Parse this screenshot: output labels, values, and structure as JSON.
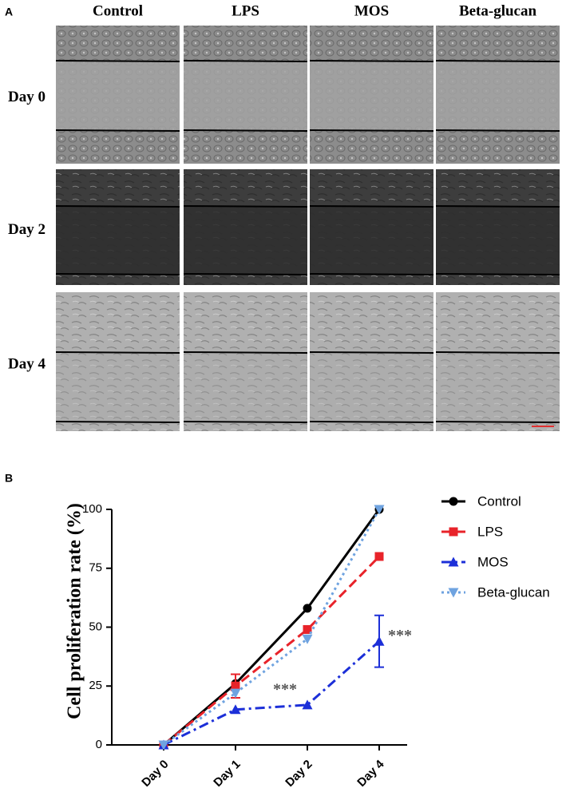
{
  "panel_a": {
    "label": "A",
    "columns": [
      "Control",
      "LPS",
      "MOS",
      "Beta-glucan"
    ],
    "rows": [
      "Day 0",
      "Day 2",
      "Day 4"
    ]
  },
  "chart_data": {
    "panel_label": "B",
    "type": "line",
    "y_label": "Cell proliferation rate (%)",
    "categories": [
      "Day 0",
      "Day 1",
      "Day 2",
      "Day 4"
    ],
    "series": [
      {
        "name": "Control",
        "color": "#000000",
        "line_style": "solid",
        "marker": "circle",
        "values": [
          0,
          26,
          58,
          100
        ]
      },
      {
        "name": "LPS",
        "color": "#e8232a",
        "line_style": "dashed",
        "marker": "square",
        "values": [
          0,
          25,
          49,
          80
        ],
        "errors": [
          null,
          5,
          null,
          null
        ]
      },
      {
        "name": "MOS",
        "color": "#1c2fd8",
        "line_style": "dashdot",
        "marker": "triangle-up",
        "values": [
          0,
          15,
          17,
          44
        ],
        "errors": [
          null,
          null,
          null,
          11
        ]
      },
      {
        "name": "Beta-glucan",
        "color": "#6fa3e0",
        "line_style": "dotted",
        "marker": "triangle-down",
        "values": [
          0,
          22,
          45,
          100
        ]
      }
    ],
    "annotations": [
      "***",
      "***"
    ],
    "ylim": [
      0,
      100
    ],
    "yticks": [
      0,
      25,
      50,
      75,
      100
    ],
    "grid": false,
    "legend": "right"
  }
}
